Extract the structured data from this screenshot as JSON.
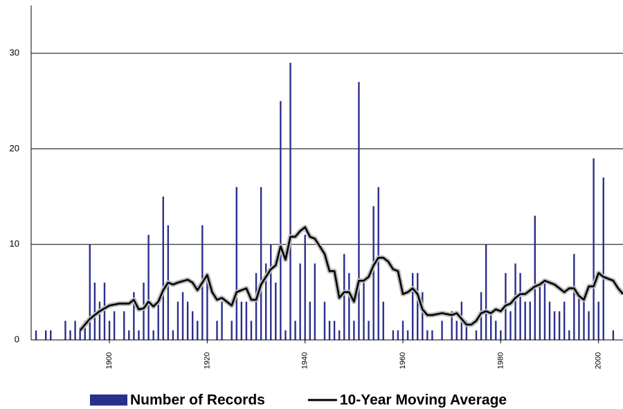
{
  "chart_data": {
    "type": "bar",
    "xlim": [
      1884,
      2005
    ],
    "xticks": [
      1900,
      1920,
      1940,
      1960,
      1980,
      2000
    ],
    "ylim": [
      0,
      35
    ],
    "yticks": [
      0,
      10,
      20,
      30
    ],
    "grid": true,
    "series": [
      {
        "name": "Number of Records",
        "color": "#2b2f8c",
        "x": [
          1885,
          1887,
          1888,
          1891,
          1892,
          1893,
          1894,
          1895,
          1896,
          1897,
          1898,
          1899,
          1900,
          1901,
          1903,
          1904,
          1905,
          1906,
          1907,
          1908,
          1909,
          1910,
          1911,
          1912,
          1913,
          1914,
          1915,
          1916,
          1917,
          1918,
          1919,
          1920,
          1922,
          1923,
          1925,
          1926,
          1927,
          1928,
          1929,
          1930,
          1931,
          1932,
          1933,
          1934,
          1935,
          1936,
          1937,
          1938,
          1939,
          1940,
          1941,
          1942,
          1944,
          1945,
          1946,
          1947,
          1948,
          1949,
          1950,
          1951,
          1952,
          1953,
          1954,
          1955,
          1956,
          1958,
          1959,
          1960,
          1961,
          1962,
          1963,
          1964,
          1965,
          1966,
          1968,
          1970,
          1971,
          1972,
          1973,
          1975,
          1976,
          1977,
          1978,
          1979,
          1980,
          1981,
          1982,
          1983,
          1984,
          1985,
          1986,
          1987,
          1988,
          1989,
          1990,
          1991,
          1992,
          1993,
          1994,
          1995,
          1996,
          1997,
          1998,
          1999,
          2000,
          2001,
          2003
        ],
        "values": [
          1,
          1,
          1,
          2,
          1,
          2,
          1,
          2,
          10,
          6,
          4,
          6,
          2,
          3,
          3,
          1,
          5,
          1,
          6,
          11,
          1,
          4,
          15,
          12,
          1,
          4,
          5,
          4,
          3,
          2,
          12,
          7,
          2,
          4,
          2,
          16,
          4,
          4,
          2,
          7,
          16,
          8,
          10,
          6,
          25,
          1,
          29,
          2,
          8,
          11,
          4,
          8,
          4,
          2,
          2,
          1,
          9,
          7,
          2,
          27,
          6,
          2,
          14,
          16,
          4,
          1,
          1,
          2,
          1,
          7,
          7,
          5,
          1,
          1,
          2,
          3,
          2,
          4,
          2,
          1,
          5,
          10,
          3,
          2,
          1,
          7,
          3,
          8,
          7,
          4,
          4,
          13,
          6,
          6,
          4,
          3,
          3,
          4,
          1,
          9,
          5,
          4,
          3,
          19,
          4,
          17,
          1
        ]
      },
      {
        "name": "10-Year Moving Average",
        "color": "#000000",
        "type": "line",
        "x": [
          1894,
          1896,
          1898,
          1900,
          1902,
          1904,
          1905,
          1906,
          1907,
          1908,
          1909,
          1910,
          1911,
          1912,
          1913,
          1914,
          1916,
          1917,
          1918,
          1919,
          1920,
          1921,
          1922,
          1923,
          1924,
          1925,
          1926,
          1927,
          1928,
          1929,
          1930,
          1931,
          1932,
          1933,
          1934,
          1935,
          1936,
          1937,
          1938,
          1939,
          1940,
          1941,
          1942,
          1943,
          1944,
          1945,
          1946,
          1947,
          1948,
          1949,
          1950,
          1951,
          1952,
          1953,
          1954,
          1955,
          1956,
          1957,
          1958,
          1959,
          1960,
          1961,
          1962,
          1963,
          1964,
          1965,
          1966,
          1968,
          1970,
          1971,
          1972,
          1973,
          1974,
          1975,
          1976,
          1977,
          1978,
          1979,
          1980,
          1981,
          1982,
          1983,
          1984,
          1985,
          1986,
          1987,
          1988,
          1989,
          1990,
          1991,
          1992,
          1993,
          1994,
          1995,
          1996,
          1997,
          1998,
          1999,
          2000,
          2001,
          2002,
          2003,
          2004,
          2005
        ],
        "values": [
          1,
          2.2,
          3,
          3.6,
          3.8,
          3.8,
          4.2,
          3.2,
          3.3,
          4,
          3.5,
          4,
          5.2,
          6,
          5.8,
          6,
          6.3,
          6,
          5.2,
          6,
          6.8,
          5,
          4.2,
          4.4,
          4,
          3.6,
          5,
          5.2,
          5.4,
          4.2,
          4.2,
          5.8,
          6.6,
          7.4,
          7.8,
          9.8,
          8.4,
          10.8,
          10.8,
          11.4,
          11.8,
          10.8,
          10.6,
          9.8,
          9,
          7.2,
          7.2,
          4.4,
          5,
          5,
          4,
          6.2,
          6.2,
          6.6,
          7.8,
          8.6,
          8.6,
          8.2,
          7.4,
          7.2,
          4.8,
          5,
          5.4,
          4.8,
          3.2,
          2.6,
          2.6,
          2.8,
          2.6,
          2.8,
          2.2,
          1.6,
          1.6,
          2,
          2.8,
          3,
          2.8,
          3.2,
          3,
          3.6,
          3.8,
          4.4,
          4.8,
          4.8,
          5.2,
          5.6,
          5.8,
          6.2,
          6,
          5.8,
          5.4,
          5,
          5.4,
          5.4,
          4.6,
          4.2,
          5.6,
          5.6,
          7,
          6.6,
          6.4,
          6.2,
          5.4,
          4.8
        ]
      }
    ]
  }
}
